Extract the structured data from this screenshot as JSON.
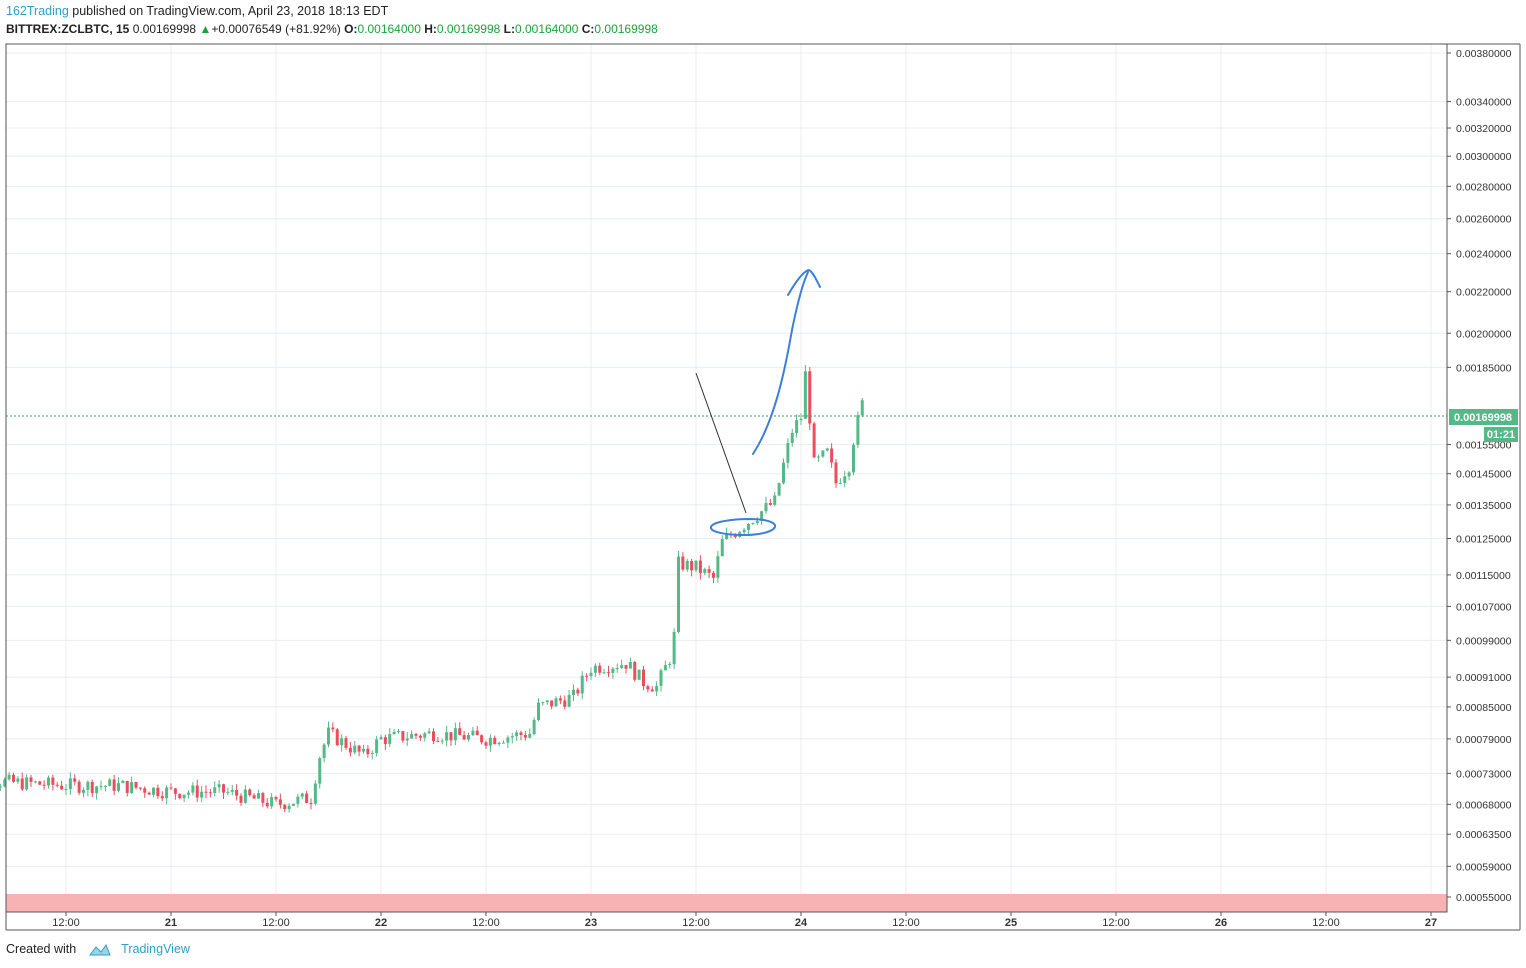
{
  "header": {
    "author": "162Trading",
    "published_text": "published on TradingView.com, April 23, 2018 18:13 EDT",
    "symbol": "BITTREX:ZCLBTC, 15",
    "last": "0.00169998",
    "change": "+0.00076549 (+81.92%)",
    "o_label": "O:",
    "o_value": "0.00164000",
    "h_label": "H:",
    "h_value": "0.00169998",
    "l_label": "L:",
    "l_value": "0.00164000",
    "c_label": "C:",
    "c_value": "0.00169998"
  },
  "colors": {
    "up": "#53b987",
    "down": "#eb4d5c",
    "grid": "#e8edf1",
    "price_line": "#26a65b",
    "annotation": "#3b7fd9",
    "red_zone": "#f9b2b2"
  },
  "price_label": "0.00169998",
  "countdown_label": "01:21",
  "footer": {
    "created_with": "Created with",
    "brand": "TradingView"
  },
  "chart_data": {
    "type": "candlestick",
    "scale": "log",
    "interval": "15",
    "symbol": "BITTREX:ZCLBTC",
    "x_ticks": [
      "12:00",
      "21",
      "12:00",
      "22",
      "12:00",
      "23",
      "12:00",
      "24",
      "12:00",
      "25",
      "12:00",
      "26",
      "12:00",
      "27"
    ],
    "y_ticks": [
      "0.00380000",
      "0.00340000",
      "0.00320000",
      "0.00300000",
      "0.00280000",
      "0.00260000",
      "0.00240000",
      "0.00220000",
      "0.00200000",
      "0.00185000",
      "0.00155000",
      "0.00145000",
      "0.00135000",
      "0.00125000",
      "0.00115000",
      "0.00107000",
      "0.00099000",
      "0.00091000",
      "0.00085000",
      "0.00079000",
      "0.00073000",
      "0.00068000",
      "0.00063500",
      "0.00059000",
      "0.00055000"
    ],
    "y_range": [
      0.00054,
      0.00405
    ],
    "last_price": 0.00169998,
    "support_zone": [
      0.00054,
      0.00056
    ],
    "price_path": [
      [
        "20 00:00",
        0.00072
      ],
      [
        "20 12:00",
        0.00071
      ],
      [
        "20 18:00",
        0.00071
      ],
      [
        "21 00:00",
        0.0007
      ],
      [
        "21 06:00",
        0.0007
      ],
      [
        "21 12:00",
        0.00068
      ],
      [
        "21 16:00",
        0.00069
      ],
      [
        "21 17:00",
        0.00076
      ],
      [
        "21 18:00",
        0.0008
      ],
      [
        "21 22:00",
        0.00076
      ],
      [
        "22 00:00",
        0.00079
      ],
      [
        "22 06:00",
        0.0008
      ],
      [
        "22 12:00",
        0.00079
      ],
      [
        "22 17:00",
        0.0008
      ],
      [
        "22 18:00",
        0.00085
      ],
      [
        "22 22:00",
        0.00087
      ],
      [
        "23 00:00",
        0.00093
      ],
      [
        "23 04:00",
        0.00094
      ],
      [
        "23 06:00",
        0.0009
      ],
      [
        "23 07:30",
        0.00089
      ],
      [
        "23 09:00",
        0.00095
      ],
      [
        "23 09:30",
        0.001
      ],
      [
        "23 10:00",
        0.00118
      ],
      [
        "23 12:00",
        0.00117
      ],
      [
        "23 14:00",
        0.00114
      ],
      [
        "23 15:00",
        0.00124
      ],
      [
        "23 18:00",
        0.0013
      ],
      [
        "23 21:00",
        0.00136
      ],
      [
        "23 23:00",
        0.0016
      ],
      [
        "24 00:00",
        0.00165
      ],
      [
        "24 00:30",
        0.00182
      ],
      [
        "24 01:30",
        0.00148
      ],
      [
        "24 03:00",
        0.00152
      ],
      [
        "24 04:00",
        0.00142
      ],
      [
        "24 05:30",
        0.00148
      ],
      [
        "24 06:00",
        0.00157
      ],
      [
        "24 07:00",
        0.00169998
      ]
    ]
  }
}
